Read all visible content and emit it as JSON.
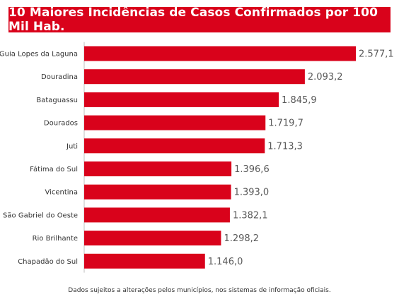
{
  "colors": {
    "bar": "#d9021b",
    "title_bg": "#d9021b",
    "label_text": "#333333",
    "value_text": "#595959",
    "axis": "#bfbfbf"
  },
  "chart_data": {
    "type": "bar",
    "orientation": "horizontal",
    "title": "10 Maiores Incidências de Casos Confirmados por 100 Mil Hab.",
    "categories": [
      "Guia Lopes da Laguna",
      "Douradina",
      "Bataguassu",
      "Dourados",
      "Juti",
      "Fátima do Sul",
      "Vicentina",
      "São Gabriel do Oeste",
      "Rio Brilhante",
      "Chapadão do Sul"
    ],
    "values": [
      2577.1,
      2093.2,
      1845.9,
      1719.7,
      1713.3,
      1396.6,
      1393.0,
      1382.1,
      1298.2,
      1146.0
    ],
    "value_labels": [
      "2.577,1",
      "2.093,2",
      "1.845,9",
      "1.719,7",
      "1.713,3",
      "1.396,6",
      "1.393,0",
      "1.382,1",
      "1.298,2",
      "1.146,0"
    ],
    "xlim": [
      0,
      2577.1
    ],
    "grid": false
  },
  "footnote": "Dados sujeitos a alterações pelos municípios, nos sistemas de informação oficiais."
}
